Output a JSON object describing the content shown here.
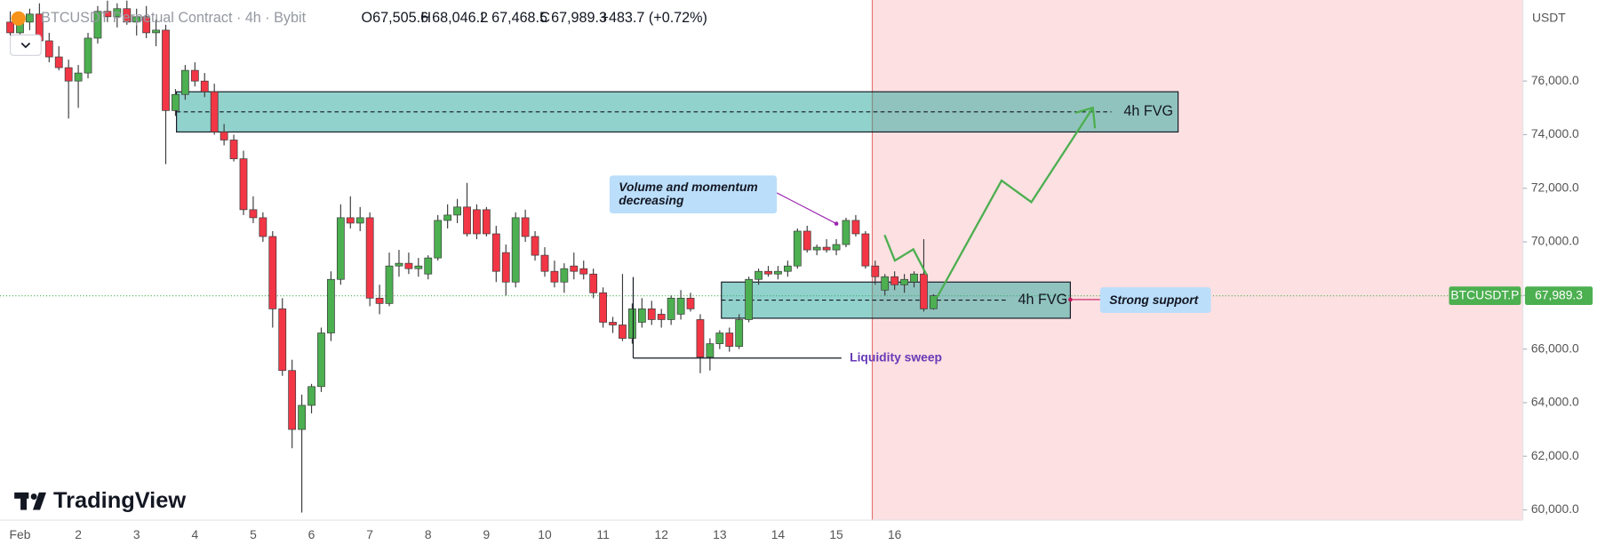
{
  "chart_data": {
    "type": "candlestick",
    "title": "BTCUSDT Perpetual Contract · 4h · Bybit",
    "ohlc_header": [
      {
        "key": "O",
        "text": "67,505.6"
      },
      {
        "key": "H",
        "text": "68,046.2"
      },
      {
        "key": "L",
        "text": "67,468.5"
      },
      {
        "key": "C",
        "text": "67,989.3"
      }
    ],
    "change": "+483.7 (+0.72%)",
    "currency": "USDT",
    "brand": "TradingView",
    "categories": [
      null,
      "Feb",
      null,
      null,
      null,
      null,
      null,
      "2",
      null,
      null,
      null,
      null,
      null,
      "3",
      null,
      null,
      null,
      null,
      null,
      "4",
      null,
      null,
      null,
      null,
      null,
      "5",
      null,
      null,
      null,
      null,
      null,
      "6",
      null,
      null,
      null,
      null,
      null,
      "7",
      null,
      null,
      null,
      null,
      null,
      "8",
      null,
      null,
      null,
      null,
      null,
      "9",
      null,
      null,
      null,
      null,
      null,
      "10",
      null,
      null,
      null,
      null,
      null,
      "11",
      null,
      null,
      null,
      null,
      null,
      "12",
      null,
      null,
      null,
      null,
      null,
      "13",
      null,
      null,
      null,
      null,
      null,
      "14",
      null,
      null,
      null,
      null,
      null,
      "15",
      null,
      null,
      null,
      null,
      null,
      "16",
      null,
      null,
      null,
      null
    ],
    "open": [
      78200,
      77800,
      78200,
      78500,
      77500,
      76900,
      76500,
      76000,
      76300,
      77600,
      78600,
      78400,
      78700,
      78200,
      78400,
      77800,
      77900,
      74900,
      75500,
      76400,
      76000,
      75600,
      74100,
      73800,
      73100,
      71200,
      70900,
      70200,
      67500,
      65200,
      63000,
      63900,
      64600,
      66600,
      68600,
      70900,
      70700,
      70900,
      67900,
      67700,
      69100,
      69200,
      69000,
      68800,
      69400,
      70800,
      71000,
      71300,
      71200,
      71200,
      70300,
      69600,
      68500,
      70900,
      70200,
      69500,
      68900,
      68500,
      69100,
      69000,
      68800,
      68100,
      67000,
      66900,
      66400,
      67000,
      67500,
      67300,
      67100,
      67300,
      67900,
      67100,
      65700,
      66200,
      66600,
      66100,
      67100,
      68600,
      68900,
      68800,
      68900,
      69100,
      70400,
      69700,
      69800,
      69700,
      69900,
      70800,
      70300,
      69100,
      68200,
      68700,
      68400,
      68500,
      68800,
      67505.6
    ],
    "high": [
      78600,
      78400,
      78700,
      78900,
      77800,
      77300,
      76800,
      76600,
      77800,
      78800,
      79000,
      78900,
      79000,
      78700,
      78800,
      78300,
      78100,
      75700,
      76600,
      76700,
      76300,
      75900,
      74400,
      74000,
      73400,
      71700,
      71100,
      70400,
      67900,
      65600,
      64300,
      64700,
      66800,
      68900,
      71400,
      71700,
      71300,
      71100,
      68400,
      69600,
      69700,
      69600,
      69400,
      69500,
      71000,
      71400,
      71600,
      72200,
      71400,
      71300,
      70600,
      69900,
      71100,
      71200,
      70400,
      69800,
      69300,
      69200,
      69600,
      69300,
      69000,
      68300,
      67200,
      68800,
      67700,
      67900,
      67800,
      67500,
      68000,
      68200,
      68100,
      67300,
      66400,
      66700,
      66800,
      67300,
      68700,
      69000,
      69100,
      69100,
      69300,
      70500,
      70600,
      69900,
      70100,
      70100,
      70900,
      71000,
      70400,
      69300,
      68800,
      68900,
      68800,
      68900,
      70100,
      68046.2
    ],
    "low": [
      77700,
      77600,
      77900,
      77400,
      76700,
      76400,
      74600,
      75000,
      76100,
      77400,
      78200,
      78000,
      78100,
      77700,
      77600,
      77300,
      72900,
      74700,
      75300,
      75800,
      75400,
      74000,
      73600,
      73000,
      71000,
      70700,
      70000,
      66800,
      65000,
      62300,
      59900,
      63600,
      64400,
      66300,
      68400,
      70500,
      70400,
      67600,
      67300,
      67600,
      68700,
      68800,
      68700,
      68600,
      69300,
      70500,
      70700,
      70200,
      70100,
      70200,
      68500,
      68000,
      68300,
      70000,
      69300,
      68700,
      68300,
      68100,
      68600,
      68600,
      67900,
      66800,
      66600,
      66300,
      66200,
      66800,
      66900,
      66800,
      66900,
      67100,
      67400,
      65100,
      65200,
      66000,
      65900,
      66000,
      67000,
      68400,
      68700,
      68600,
      68700,
      69000,
      69600,
      69500,
      69600,
      69500,
      69800,
      70200,
      69000,
      68400,
      68000,
      68200,
      68100,
      68300,
      67400,
      67468.5
    ],
    "close": [
      77800,
      78200,
      78500,
      77500,
      76900,
      76500,
      76000,
      76300,
      77600,
      78600,
      78400,
      78700,
      78200,
      78400,
      77800,
      77900,
      74900,
      75500,
      76400,
      76000,
      75600,
      74100,
      73800,
      73100,
      71200,
      70900,
      70200,
      67500,
      65200,
      63000,
      63900,
      64600,
      66600,
      68600,
      70900,
      70700,
      70900,
      67900,
      67700,
      69100,
      69200,
      69000,
      69100,
      69400,
      70800,
      71000,
      71300,
      70300,
      70300,
      70300,
      68900,
      68500,
      70900,
      70200,
      69500,
      68900,
      68500,
      69000,
      68900,
      68800,
      68100,
      67000,
      66900,
      66400,
      67500,
      67500,
      67100,
      67100,
      67900,
      67900,
      67500,
      65700,
      66200,
      66600,
      66100,
      67100,
      68600,
      68900,
      68800,
      68900,
      69100,
      70400,
      69700,
      69800,
      69700,
      69900,
      70800,
      70300,
      69100,
      68700,
      68700,
      68400,
      68600,
      68800,
      67500,
      67989.3
    ],
    "up_color": "#4caf50",
    "down_color": "#f23645",
    "ylim": [
      59616,
      79024
    ],
    "yticks": [
      {
        "value": 60000,
        "label": "60,000.0"
      },
      {
        "value": 62000,
        "label": "62,000.0"
      },
      {
        "value": 64000,
        "label": "64,000.0"
      },
      {
        "value": 66000,
        "label": "66,000.0"
      },
      {
        "value": 68000,
        "label": "68,000.0"
      },
      {
        "value": 70000,
        "label": "70,000.0"
      },
      {
        "value": 72000,
        "label": "72,000.0"
      },
      {
        "value": 74000,
        "label": "74,000.0"
      },
      {
        "value": 76000,
        "label": "76,000.0"
      }
    ],
    "zones": [
      {
        "label": "4h FVG",
        "from": 74100,
        "to": 75600,
        "color": "#26a69a"
      },
      {
        "label": "4h FVG",
        "from": 67150,
        "to": 68500,
        "color": "#26a69a"
      }
    ],
    "callout_momentum": [
      "Volume and momentum",
      "decreasing"
    ],
    "callout_support": "Strong support",
    "liquidity_label": "Liquidity sweep",
    "last_price": {
      "symbol": "BTCUSDT.P",
      "label": "67,989.3"
    }
  }
}
